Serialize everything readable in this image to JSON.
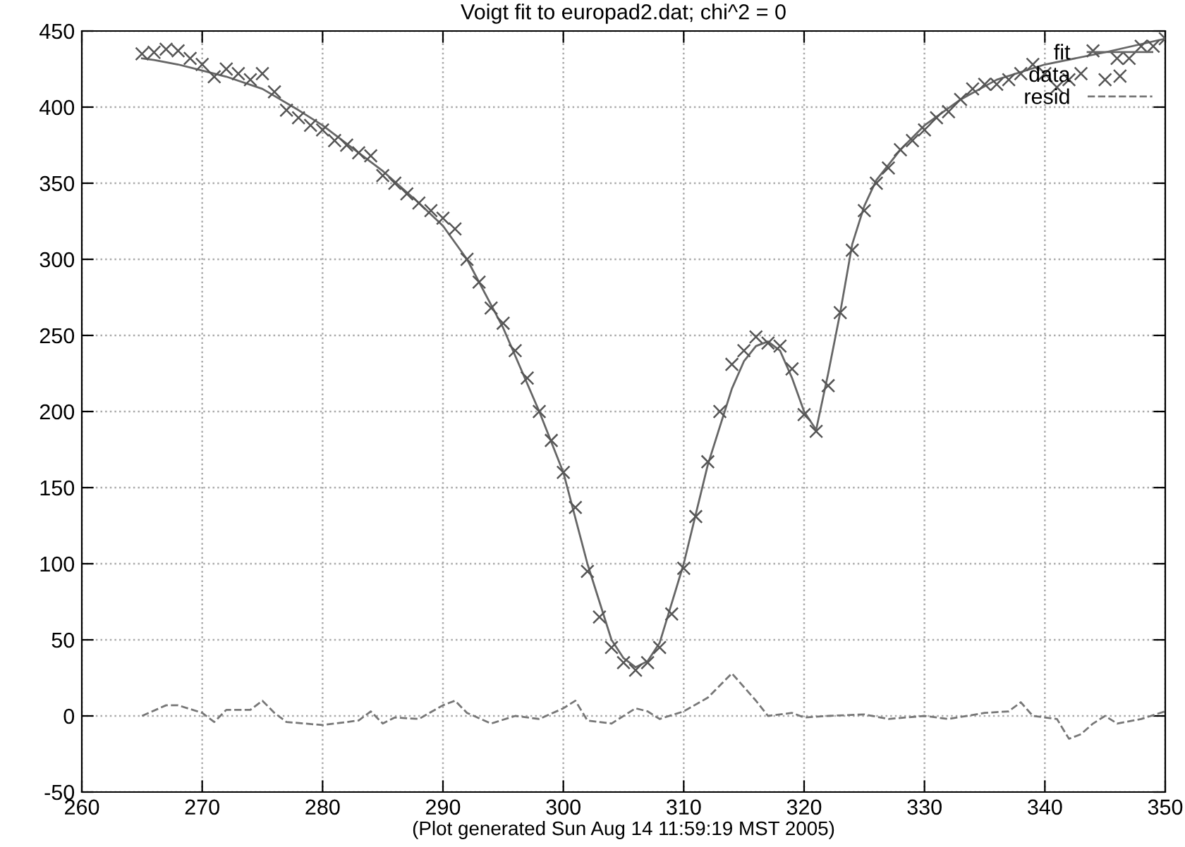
{
  "chart_data": {
    "type": "line",
    "title": "Voigt fit to europad2.dat; chi^2 = 0",
    "xlabel": "(Plot generated Sun Aug 14 11:59:19 MST 2005)",
    "xlim": [
      260,
      350
    ],
    "xticks": [
      260,
      270,
      280,
      290,
      300,
      310,
      320,
      330,
      340,
      350
    ],
    "ylim": [
      -50,
      450
    ],
    "yticks": [
      -50,
      0,
      50,
      100,
      150,
      200,
      250,
      300,
      350,
      400,
      450
    ],
    "grid": true,
    "legend": "top right",
    "series": [
      {
        "name": "fit",
        "line_style": "solid",
        "marker": "none",
        "color": "#666666",
        "x": [
          265,
          266,
          268,
          270,
          272,
          275,
          278,
          280,
          283,
          285,
          288,
          290,
          292,
          295,
          298,
          300,
          302,
          304,
          305,
          306,
          307,
          308,
          310,
          312,
          314,
          315,
          316,
          317,
          318,
          319,
          320,
          321,
          322,
          323,
          324,
          325,
          326,
          328,
          330,
          333,
          336,
          340,
          345,
          350
        ],
        "values": [
          432,
          431,
          428,
          424,
          420,
          412,
          398,
          388,
          370,
          358,
          337,
          322,
          300,
          255,
          200,
          160,
          100,
          50,
          38,
          32,
          36,
          48,
          100,
          165,
          215,
          233,
          243,
          246,
          240,
          222,
          200,
          188,
          225,
          265,
          310,
          335,
          352,
          372,
          388,
          405,
          418,
          428,
          436,
          445
        ]
      },
      {
        "name": "data",
        "type": "scatter",
        "marker": "cross",
        "color": "#555555",
        "x": [
          265,
          266,
          267,
          268,
          269,
          270,
          271,
          272,
          273,
          274,
          275,
          276,
          277,
          278,
          279,
          280,
          281,
          282,
          283,
          284,
          285,
          286,
          287,
          288,
          289,
          290,
          291,
          292,
          293,
          294,
          295,
          296,
          297,
          298,
          299,
          300,
          301,
          302,
          303,
          304,
          305,
          306,
          307,
          308,
          309,
          310,
          311,
          312,
          313,
          314,
          315,
          316,
          317,
          318,
          319,
          320,
          321,
          322,
          323,
          324,
          325,
          326,
          327,
          328,
          329,
          330,
          331,
          332,
          333,
          334,
          335,
          336,
          337,
          338,
          339,
          340,
          341,
          342,
          343,
          344,
          345,
          346,
          347,
          348,
          349,
          350
        ],
        "values": [
          435,
          436,
          438,
          437,
          432,
          428,
          420,
          425,
          422,
          418,
          422,
          410,
          398,
          393,
          388,
          385,
          378,
          375,
          370,
          368,
          355,
          350,
          343,
          337,
          332,
          327,
          320,
          300,
          285,
          268,
          258,
          240,
          222,
          200,
          181,
          160,
          137,
          95,
          65,
          45,
          35,
          30,
          35,
          45,
          67,
          97,
          131,
          167,
          200,
          231,
          240,
          249,
          245,
          243,
          228,
          198,
          187,
          217,
          265,
          306,
          332,
          350,
          360,
          372,
          378,
          385,
          393,
          397,
          405,
          412,
          415,
          415,
          418,
          422,
          428,
          422,
          413,
          418,
          422,
          437,
          418,
          432,
          432,
          440,
          440,
          445
        ]
      },
      {
        "name": "resid",
        "line_style": "dashed",
        "marker": "none",
        "color": "#777777",
        "x": [
          265,
          267,
          268,
          270,
          271,
          272,
          274,
          275,
          276,
          277,
          280,
          283,
          284,
          285,
          286,
          288,
          290,
          291,
          292,
          294,
          296,
          298,
          300,
          301,
          302,
          304,
          306,
          307,
          308,
          310,
          312,
          314,
          316,
          317,
          319,
          320,
          322,
          325,
          327,
          330,
          332,
          335,
          337,
          338,
          339,
          341,
          342,
          343,
          344,
          345,
          346,
          348,
          350
        ],
        "values": [
          0,
          7,
          7,
          2,
          -4,
          4,
          4,
          10,
          2,
          -4,
          -6,
          -3,
          3,
          -5,
          -1,
          -2,
          7,
          10,
          2,
          -5,
          0,
          -2,
          5,
          10,
          -3,
          -5,
          5,
          3,
          -2,
          3,
          12,
          28,
          10,
          0,
          2,
          -1,
          0,
          1,
          -2,
          0,
          -2,
          2,
          3,
          9,
          0,
          -2,
          -15,
          -12,
          -5,
          0,
          -5,
          -2,
          3
        ]
      }
    ]
  }
}
